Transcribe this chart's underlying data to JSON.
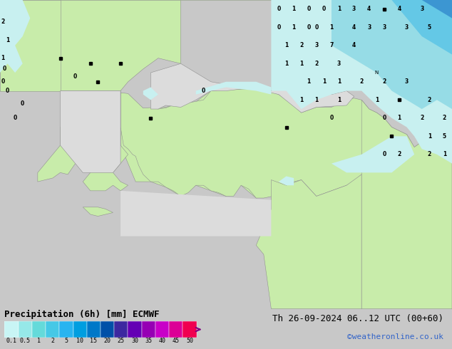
{
  "title": "Precipitation (6h) [mm] ECMWF",
  "datetime_text": "Th 26-09-2024 06..12 UTC (00+60)",
  "credit_text": "©weatheronline.co.uk",
  "colorbar_labels": [
    "0.1",
    "0.5",
    "1",
    "2",
    "5",
    "10",
    "15",
    "20",
    "25",
    "30",
    "35",
    "40",
    "45",
    "50"
  ],
  "colorbar_colors": [
    "#c8f5f5",
    "#96e8e8",
    "#64dada",
    "#46c8e6",
    "#28b4f0",
    "#009ee0",
    "#0078c8",
    "#0050a8",
    "#3c28a0",
    "#6400b4",
    "#9600b4",
    "#c800c8",
    "#dc0096",
    "#f00050"
  ],
  "bg_color": "#c8c8c8",
  "map_bg_color": "#dcdcdc",
  "map_land_color": "#c8ecaa",
  "map_sea_color": "#dcdcdc",
  "map_border_color": "#909090",
  "prec_light_color": "#c8f0f0",
  "prec_medium_color": "#96dce6",
  "prec_blue_color": "#64c8e6",
  "prec_dark_blue_color": "#3c96d2",
  "prec_deep_blue_color": "#1464b4",
  "title_color": "#000000",
  "datetime_color": "#000000",
  "credit_color": "#3264c8",
  "title_fontsize": 9,
  "datetime_fontsize": 9,
  "credit_fontsize": 8
}
